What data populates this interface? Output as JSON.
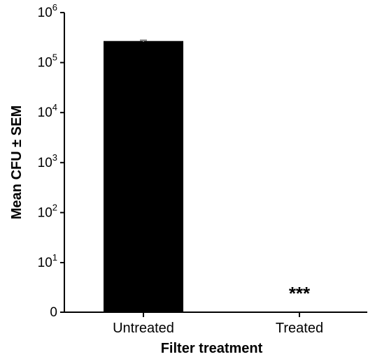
{
  "chart_data": {
    "type": "bar",
    "title": "",
    "xlabel": "Filter treatment",
    "ylabel": "Mean CFU ± SEM",
    "y_scale": "log",
    "ylim": [
      0,
      1000000
    ],
    "y_ticks": [
      {
        "value": 0,
        "base": "0",
        "exp": ""
      },
      {
        "value": 10,
        "base": "10",
        "exp": "1"
      },
      {
        "value": 100,
        "base": "10",
        "exp": "2"
      },
      {
        "value": 1000,
        "base": "10",
        "exp": "3"
      },
      {
        "value": 10000,
        "base": "10",
        "exp": "4"
      },
      {
        "value": 100000,
        "base": "10",
        "exp": "5"
      },
      {
        "value": 1000000,
        "base": "10",
        "exp": "6"
      }
    ],
    "categories": [
      "Untreated",
      "Treated"
    ],
    "values": [
      270000,
      0
    ],
    "errors": [
      10000,
      0
    ],
    "annotations": [
      {
        "category": "Treated",
        "text": "***"
      }
    ],
    "bar_color": "#000000",
    "error_color": "#808080"
  }
}
